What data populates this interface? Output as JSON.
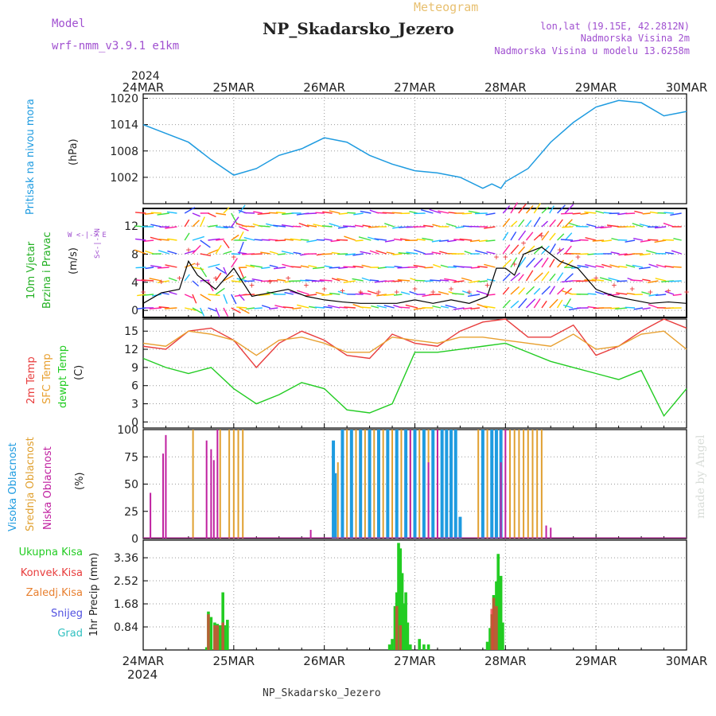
{
  "header": {
    "model_label": "Model",
    "model_name": "wrf-nmm_v3.9.1 e1km",
    "chart_type": "Meteogram",
    "station": "NP_Skadarsko_Jezero",
    "lonlat": "lon,lat (19.15E, 42.2812N)",
    "altitude": "Nadmorska Visina 2m",
    "model_altitude": "Nadmorska Visina u modelu 13.6258m",
    "credit": "made by Angel",
    "bottom_station": "NP_Skadarsko_Jezero"
  },
  "colors": {
    "pressure": "#1e9be0",
    "wind_speed_label": "#22b022",
    "temp2m": "#e83c3c",
    "sfc_temp": "#e8a030",
    "dewpoint": "#22cc22",
    "high_cloud": "#1e9be0",
    "mid_cloud": "#e0a030",
    "low_cloud": "#c020a0",
    "total_precip": "#22cc22",
    "conv_precip": "#e83c3c",
    "snow_precip": "#e88030",
    "snow": "#5050e0",
    "hail": "#30c0c0",
    "meta": "#a050d0"
  },
  "chart_data": [
    {
      "type": "line",
      "name": "pressure-panel",
      "ylabel_main": "Pritisak na nivou mora",
      "ylabel_unit": "(hPa)",
      "yticks": [
        1002,
        1008,
        1014,
        1020
      ],
      "ylim": [
        996,
        1021
      ],
      "x_days": [
        0,
        0.25,
        0.5,
        0.75,
        1,
        1.25,
        1.5,
        1.75,
        2,
        2.25,
        2.5,
        2.75,
        3,
        3.25,
        3.5,
        3.75,
        3.85,
        3.95,
        4,
        4.25,
        4.5,
        4.75,
        5,
        5.25,
        5.5,
        5.75,
        6
      ],
      "values": [
        1014,
        1012,
        1010,
        1006,
        1002.5,
        1004,
        1007,
        1008.5,
        1011,
        1010,
        1007,
        1005,
        1003.5,
        1003,
        1002,
        999.5,
        1000.5,
        999.5,
        1001,
        1004,
        1010,
        1014.5,
        1018,
        1019.5,
        1019,
        1016,
        1017
      ]
    },
    {
      "type": "line",
      "name": "wind-panel",
      "ylabel_main": "10m Vjetar",
      "ylabel_sub": "Brzina i Pravac",
      "ylabel_unit": "(m/s)",
      "direction_key": "W <-|-> E",
      "direction_key2": "S<-|->N",
      "yticks": [
        0,
        4,
        8,
        12
      ],
      "ylim": [
        -1,
        14.5
      ],
      "x_days": [
        0,
        0.2,
        0.4,
        0.5,
        0.6,
        0.8,
        1,
        1.2,
        1.4,
        1.6,
        1.8,
        2,
        2.2,
        2.4,
        2.6,
        2.8,
        3,
        3.2,
        3.4,
        3.6,
        3.8,
        3.9,
        4,
        4.1,
        4.2,
        4.4,
        4.6,
        4.8,
        5,
        5.2,
        5.4,
        5.6,
        5.8,
        6
      ],
      "values": [
        1,
        2.5,
        3,
        7,
        5,
        3,
        6,
        2,
        2.5,
        3,
        2,
        1.5,
        1.2,
        1,
        1,
        1,
        1.5,
        1,
        1.5,
        1,
        2,
        6,
        6,
        5,
        8,
        9,
        7,
        6,
        3,
        2,
        1.5,
        1,
        1.2,
        1
      ]
    },
    {
      "type": "line",
      "name": "temperature-panel",
      "ylabel_t2": "2m Temp",
      "ylabel_sfc": "SFC Temp",
      "ylabel_dew": "dewpt Temp",
      "ylabel_unit": "(C)",
      "yticks": [
        0,
        3,
        6,
        9,
        12,
        15
      ],
      "ylim": [
        -1,
        17
      ],
      "x_days": [
        0,
        0.25,
        0.5,
        0.75,
        1,
        1.25,
        1.5,
        1.75,
        2,
        2.25,
        2.5,
        2.75,
        3,
        3.25,
        3.5,
        3.75,
        4,
        4.25,
        4.5,
        4.75,
        5,
        5.25,
        5.5,
        5.75,
        6
      ],
      "series": [
        {
          "name": "2m Temp",
          "values": [
            12.5,
            12,
            15,
            15.5,
            13.5,
            9,
            13,
            15,
            13.5,
            11,
            10.5,
            14.5,
            13,
            12.5,
            15,
            16.5,
            17,
            14,
            14,
            16,
            11,
            12.5,
            15,
            17,
            15.5
          ]
        },
        {
          "name": "SFC Temp",
          "values": [
            13,
            12.5,
            15,
            14.5,
            13.5,
            11,
            13.5,
            14,
            13,
            11.5,
            11.5,
            14,
            13.5,
            13,
            14,
            14,
            13.5,
            13,
            12.5,
            14.5,
            12,
            12.5,
            14.5,
            15,
            12
          ]
        },
        {
          "name": "dewpt Temp",
          "values": [
            10.5,
            9,
            8,
            9,
            5.5,
            3,
            4.5,
            6.5,
            5.5,
            2,
            1.5,
            3,
            11.5,
            11.5,
            12,
            12.5,
            13,
            11.5,
            10,
            9,
            8,
            7,
            8.5,
            1,
            5.5
          ]
        }
      ]
    },
    {
      "type": "bar",
      "name": "cloud-panel",
      "ylabel_high": "Visoka Oblacnost",
      "ylabel_mid": "Srednja Oblacnost",
      "ylabel_low": "Niska Oblacnost",
      "ylabel_unit": "(%)",
      "yticks": [
        0,
        25,
        50,
        75,
        100
      ],
      "ylim": [
        0,
        100
      ],
      "series": [
        {
          "name": "Visoka Oblacnost",
          "days": [
            2.1,
            2.12,
            2.2,
            2.3,
            2.4,
            2.5,
            2.6,
            2.7,
            2.8,
            2.9,
            3.0,
            3.1,
            3.2,
            3.3,
            3.35,
            3.4,
            3.45,
            3.5,
            3.75,
            3.85,
            3.9,
            3.95
          ],
          "values": [
            90,
            60,
            100,
            100,
            100,
            100,
            100,
            100,
            100,
            100,
            100,
            100,
            100,
            100,
            100,
            100,
            100,
            20,
            100,
            100,
            100,
            100
          ]
        },
        {
          "name": "Srednja Oblacnost",
          "days": [
            0.55,
            0.85,
            0.95,
            1.0,
            1.05,
            1.1,
            2.15,
            2.25,
            2.35,
            2.45,
            2.55,
            2.65,
            2.75,
            2.85,
            2.95,
            3.05,
            3.15,
            3.25,
            3.7,
            3.8,
            4.05,
            4.1,
            4.15,
            4.2,
            4.25,
            4.3,
            4.35,
            4.4
          ],
          "values": [
            100,
            100,
            100,
            100,
            100,
            100,
            70,
            100,
            100,
            100,
            100,
            100,
            100,
            100,
            100,
            100,
            100,
            100,
            100,
            100,
            100,
            100,
            100,
            100,
            100,
            100,
            100,
            100
          ]
        },
        {
          "name": "Niska Oblacnost",
          "days": [
            0.08,
            0.22,
            0.25,
            0.7,
            0.75,
            0.78,
            0.82,
            1.85,
            2.95,
            3.15,
            3.25,
            3.95,
            4.0,
            4.45,
            4.5
          ],
          "values": [
            42,
            78,
            95,
            90,
            82,
            72,
            100,
            8,
            100,
            70,
            100,
            70,
            100,
            12,
            10
          ]
        }
      ]
    },
    {
      "type": "bar",
      "name": "precip-panel",
      "ylabel_total": "Ukupna Kisa",
      "ylabel_conv": "Konvek.Kisa",
      "ylabel_snow": "Zaledj.Kisa",
      "ylabel_snj": "Snijeg",
      "ylabel_grad": "Grad",
      "ylabel_unit": "1hr Precip (mm)",
      "yticks": [
        0.84,
        1.68,
        2.52,
        3.36
      ],
      "ylim": [
        0,
        4
      ],
      "series": [
        {
          "name": "Ukupna Kisa",
          "days": [
            0.7,
            0.72,
            0.75,
            0.79,
            0.82,
            0.85,
            0.88,
            0.9,
            0.93,
            2.72,
            2.75,
            2.78,
            2.8,
            2.82,
            2.84,
            2.86,
            2.88,
            2.9,
            2.92,
            2.95,
            3.05,
            3.1,
            3.15,
            3.8,
            3.83,
            3.85,
            3.87,
            3.9,
            3.92,
            3.95,
            3.97
          ],
          "values": [
            0.1,
            1.4,
            1.2,
            1.0,
            0.95,
            0.9,
            2.1,
            0.9,
            1.1,
            0.2,
            0.4,
            1.6,
            2.1,
            3.9,
            3.7,
            2.8,
            1.7,
            2.1,
            1.0,
            0.2,
            0.4,
            0.2,
            0.2,
            0.3,
            0.8,
            1.3,
            2.0,
            2.5,
            3.5,
            2.7,
            1.0
          ]
        },
        {
          "name": "Konvek.Kisa",
          "days": [
            0.72,
            0.79,
            0.82,
            0.88,
            2.8,
            2.84,
            3.85,
            3.87,
            3.9
          ],
          "values": [
            1.3,
            0.9,
            0.9,
            1.0,
            1.6,
            0.9,
            1.5,
            1.9,
            1.6
          ]
        }
      ]
    }
  ],
  "xaxis": {
    "year": "2024",
    "labels": [
      "24MAR",
      "25MAR",
      "26MAR",
      "27MAR",
      "28MAR",
      "29MAR",
      "30MAR"
    ]
  }
}
